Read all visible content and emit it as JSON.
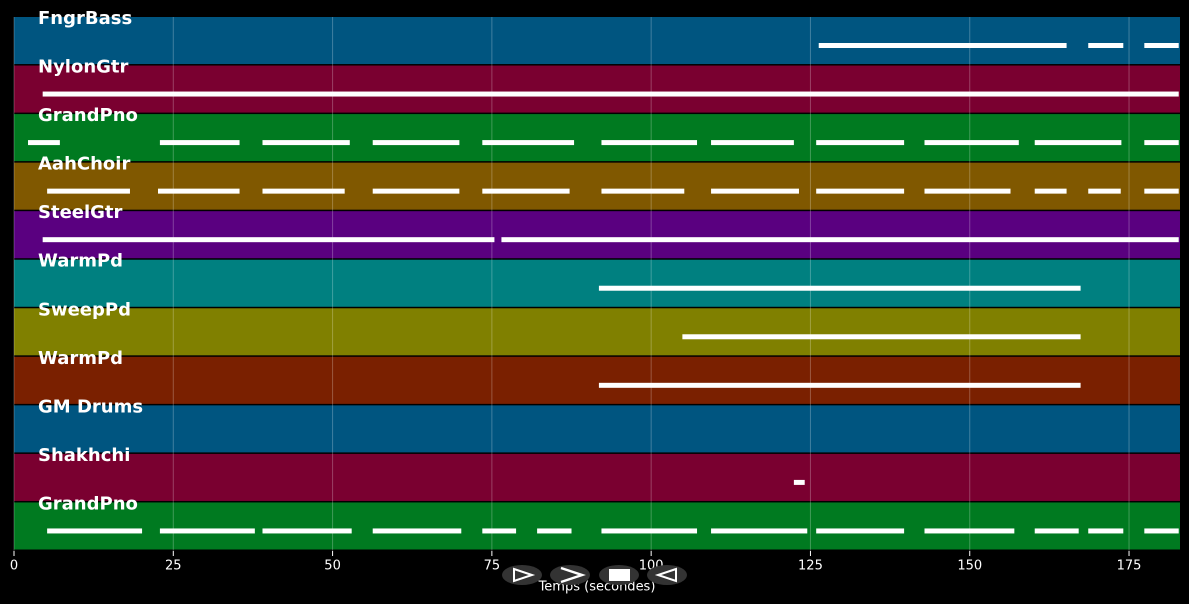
{
  "chart_data": {
    "type": "pianoroll",
    "xlabel": "Temps (secondes)",
    "xlim": [
      0,
      183
    ],
    "xticks": [
      0,
      25,
      50,
      75,
      100,
      125,
      150,
      175
    ],
    "grid": true,
    "note_color": "#ffffff",
    "tracks": [
      {
        "name": "FngrBass",
        "color": "#005580",
        "segments": [
          [
            126.3,
            165.2
          ],
          [
            168.6,
            174.1
          ],
          [
            177.4,
            182.8
          ]
        ]
      },
      {
        "name": "NylonGtr",
        "color": "#7a0030",
        "segments": [
          [
            4.5,
            182.8
          ]
        ]
      },
      {
        "name": "GrandPno",
        "color": "#007a20",
        "segments": [
          [
            2.2,
            7.2
          ],
          [
            22.9,
            35.4
          ],
          [
            39.0,
            52.7
          ],
          [
            56.3,
            69.9
          ],
          [
            73.5,
            87.9
          ],
          [
            92.2,
            107.2
          ],
          [
            109.4,
            122.4
          ],
          [
            125.9,
            139.7
          ],
          [
            142.9,
            157.7
          ],
          [
            160.2,
            173.8
          ],
          [
            177.4,
            182.8
          ]
        ]
      },
      {
        "name": "AahChoir",
        "color": "#805800",
        "segments": [
          [
            5.2,
            18.2
          ],
          [
            22.6,
            35.4
          ],
          [
            39.0,
            51.9
          ],
          [
            56.3,
            69.9
          ],
          [
            73.5,
            87.2
          ],
          [
            92.2,
            105.2
          ],
          [
            109.4,
            123.2
          ],
          [
            125.9,
            139.7
          ],
          [
            142.9,
            156.4
          ],
          [
            160.2,
            165.2
          ],
          [
            168.6,
            173.7
          ],
          [
            177.4,
            182.8
          ]
        ]
      },
      {
        "name": "SteelGtr",
        "color": "#5a0080",
        "segments": [
          [
            4.5,
            75.4
          ],
          [
            76.5,
            182.8
          ]
        ]
      },
      {
        "name": "WarmPd",
        "color": "#008080",
        "segments": [
          [
            91.8,
            167.4
          ]
        ]
      },
      {
        "name": "SweepPd",
        "color": "#808000",
        "segments": [
          [
            104.9,
            167.4
          ]
        ]
      },
      {
        "name": "WarmPd",
        "color": "#7a2000",
        "segments": [
          [
            91.8,
            167.4
          ]
        ]
      },
      {
        "name": "GM Drums",
        "color": "#005580",
        "segments": []
      },
      {
        "name": "Shakhchi",
        "color": "#7a0030",
        "segments": [
          [
            122.4,
            124.1
          ]
        ]
      },
      {
        "name": "GrandPno",
        "color": "#007a20",
        "segments": [
          [
            5.2,
            20.1
          ],
          [
            22.9,
            37.8
          ],
          [
            39.0,
            53.0
          ],
          [
            56.3,
            70.2
          ],
          [
            73.5,
            78.8
          ],
          [
            82.1,
            87.5
          ],
          [
            92.2,
            107.2
          ],
          [
            109.4,
            124.5
          ],
          [
            125.9,
            139.7
          ],
          [
            142.9,
            157.0
          ],
          [
            160.2,
            167.1
          ],
          [
            168.6,
            174.1
          ],
          [
            177.4,
            182.8
          ]
        ]
      }
    ]
  }
}
